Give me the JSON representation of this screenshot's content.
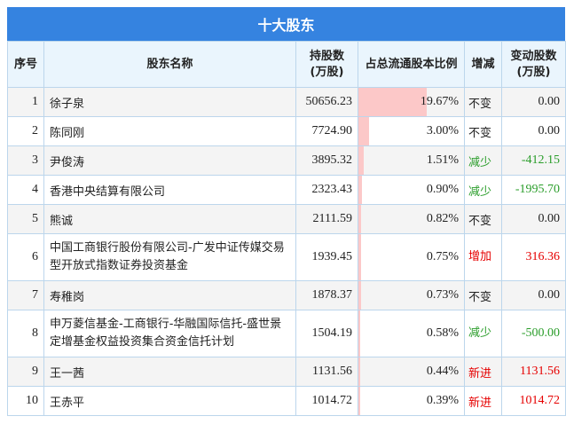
{
  "title": "十大股东",
  "headers": [
    "序号",
    "股东名称",
    "持股数\n(万股)",
    "占总流通股本比例",
    "增减",
    "变动股数\n(万股)"
  ],
  "colors": {
    "header_bg": "#3583e0",
    "bar": "#fcc8c8",
    "increase": "#e60000",
    "decrease": "#2a9d2a",
    "unchanged": "#222222"
  },
  "rows": [
    {
      "rank": "1",
      "name": "徐子泉",
      "shares": "50656.23",
      "pct": "19.67%",
      "pct_value": 19.67,
      "change": "不变",
      "change_type": "unchanged",
      "delta": "0.00"
    },
    {
      "rank": "2",
      "name": "陈同刚",
      "shares": "7724.90",
      "pct": "3.00%",
      "pct_value": 3.0,
      "change": "不变",
      "change_type": "unchanged",
      "delta": "0.00"
    },
    {
      "rank": "3",
      "name": "尹俊涛",
      "shares": "3895.32",
      "pct": "1.51%",
      "pct_value": 1.51,
      "change": "减少",
      "change_type": "decrease",
      "delta": "-412.15"
    },
    {
      "rank": "4",
      "name": "香港中央结算有限公司",
      "shares": "2323.43",
      "pct": "0.90%",
      "pct_value": 0.9,
      "change": "减少",
      "change_type": "decrease",
      "delta": "-1995.70"
    },
    {
      "rank": "5",
      "name": "熊诚",
      "shares": "2111.59",
      "pct": "0.82%",
      "pct_value": 0.82,
      "change": "不变",
      "change_type": "unchanged",
      "delta": "0.00"
    },
    {
      "rank": "6",
      "name": "中国工商银行股份有限公司-广发中证传媒交易型开放式指数证券投资基金",
      "shares": "1939.45",
      "pct": "0.75%",
      "pct_value": 0.75,
      "change": "增加",
      "change_type": "increase",
      "delta": "316.36"
    },
    {
      "rank": "7",
      "name": "寿稚岗",
      "shares": "1878.37",
      "pct": "0.73%",
      "pct_value": 0.73,
      "change": "不变",
      "change_type": "unchanged",
      "delta": "0.00"
    },
    {
      "rank": "8",
      "name": "申万菱信基金-工商银行-华融国际信托-盛世景定增基金权益投资集合资金信托计划",
      "shares": "1504.19",
      "pct": "0.58%",
      "pct_value": 0.58,
      "change": "减少",
      "change_type": "decrease",
      "delta": "-500.00"
    },
    {
      "rank": "9",
      "name": "王一茜",
      "shares": "1131.56",
      "pct": "0.44%",
      "pct_value": 0.44,
      "change": "新进",
      "change_type": "increase",
      "delta": "1131.56"
    },
    {
      "rank": "10",
      "name": "王赤平",
      "shares": "1014.72",
      "pct": "0.39%",
      "pct_value": 0.39,
      "change": "新进",
      "change_type": "increase",
      "delta": "1014.72"
    }
  ]
}
